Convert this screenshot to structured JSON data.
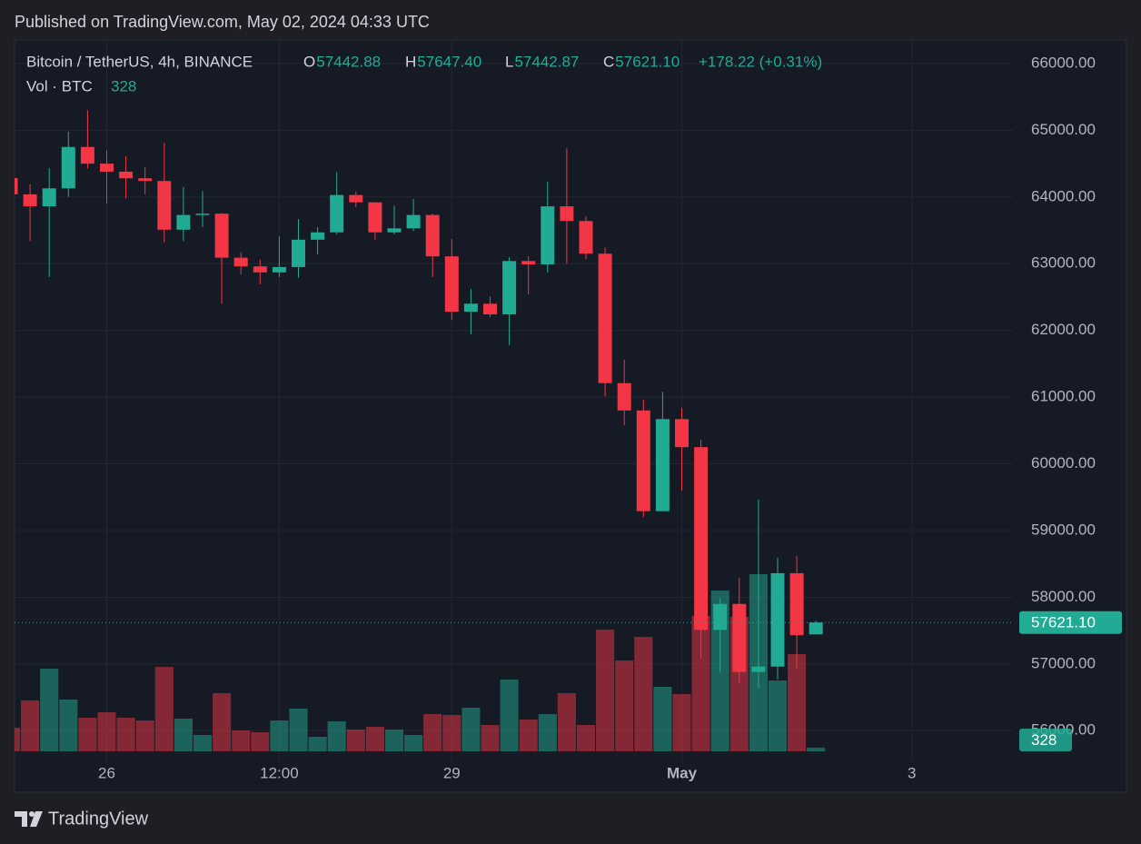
{
  "chart_data": {
    "type": "candlestick",
    "header": "Published on TradingView.com, May 02, 2024 04:33 UTC",
    "symbol": "Bitcoin / TetherUS, 4h, BINANCE",
    "ohlc_legend": [
      {
        "key": "O",
        "value": "57442.88"
      },
      {
        "key": "H",
        "value": "57647.40"
      },
      {
        "key": "L",
        "value": "57442.87"
      },
      {
        "key": "C",
        "value": "57621.10"
      }
    ],
    "change": "+178.22 (+0.31%)",
    "volume_label": "Vol · BTC",
    "price_label": "57621.10",
    "brand": "TradingView",
    "up_color": "#22ab94",
    "down_color": "#f23645",
    "grid": true,
    "categories": [
      null,
      null,
      null,
      null,
      null,
      "26",
      null,
      null,
      null,
      null,
      null,
      null,
      null,
      null,
      "12:00",
      null,
      null,
      null,
      null,
      null,
      null,
      null,
      null,
      "29",
      null,
      null,
      null,
      null,
      null,
      null,
      null,
      null,
      null,
      null,
      null,
      "May",
      null,
      null,
      null,
      null,
      null,
      null,
      null,
      null,
      null,
      null,
      null,
      "3",
      null,
      null,
      null,
      null,
      null
    ],
    "open": [
      64284,
      64040,
      63860,
      64130,
      64750,
      64500,
      64380,
      64280,
      64240,
      63510,
      63730,
      63750,
      63090,
      62960,
      62870,
      62950,
      63360,
      63470,
      64030,
      63920,
      63470,
      63530,
      63730,
      63110,
      62280,
      62400,
      62240,
      63040,
      62990,
      63860,
      63640,
      63150,
      61210,
      60800,
      59290,
      60670,
      60250,
      57510,
      57900,
      56880,
      56960,
      58360,
      57442.88,
      null,
      null,
      null,
      null,
      null,
      null,
      null,
      null,
      null,
      null
    ],
    "high": [
      64400,
      64190,
      64430,
      64980,
      65300,
      64700,
      64610,
      64450,
      64810,
      64150,
      64090,
      63760,
      63170,
      63060,
      63410,
      63670,
      63550,
      64370,
      64080,
      63920,
      63870,
      63970,
      63750,
      63370,
      62620,
      62510,
      63100,
      63110,
      64230,
      64730,
      63710,
      63240,
      61560,
      60960,
      61080,
      60840,
      60360,
      57990,
      58290,
      59460,
      58590,
      58620,
      57647.4,
      null,
      null,
      null,
      null,
      null,
      null,
      null,
      null,
      null,
      null
    ],
    "low": [
      63800,
      63340,
      62800,
      64000,
      64430,
      63900,
      63980,
      64040,
      63320,
      63340,
      63550,
      62400,
      62840,
      62690,
      62800,
      62790,
      63140,
      63440,
      63850,
      63360,
      63440,
      63490,
      62800,
      62160,
      61940,
      62200,
      61780,
      62540,
      62870,
      63000,
      63070,
      61010,
      60580,
      59200,
      59290,
      59600,
      57080,
      56880,
      56710,
      56640,
      56770,
      56930,
      57442.87,
      null,
      null,
      null,
      null,
      null,
      null,
      null,
      null,
      null,
      null
    ],
    "close": [
      64040,
      63860,
      64130,
      64750,
      64500,
      64380,
      64280,
      64240,
      63510,
      63730,
      63750,
      63090,
      62960,
      62870,
      62950,
      63360,
      63470,
      64030,
      63920,
      63470,
      63530,
      63730,
      63110,
      62280,
      62400,
      62240,
      63040,
      62990,
      63860,
      63640,
      63150,
      61210,
      60800,
      59290,
      60670,
      60250,
      57510,
      57900,
      56880,
      56960,
      58360,
      57430,
      57621.1,
      null,
      null,
      null,
      null,
      null,
      null,
      null,
      null,
      null,
      null
    ],
    "volume": [
      2080,
      4480,
      7280,
      4560,
      2960,
      3440,
      2960,
      2720,
      7440,
      2880,
      1440,
      5120,
      1840,
      1680,
      2720,
      3760,
      1280,
      2640,
      1920,
      2160,
      1920,
      1440,
      3280,
      3200,
      3840,
      2320,
      6320,
      2800,
      3280,
      5120,
      2320,
      10720,
      8000,
      10080,
      5680,
      5040,
      11920,
      14160,
      11840,
      15600,
      6240,
      8560,
      328,
      null,
      null,
      null,
      null,
      null,
      null,
      null,
      null,
      null,
      null
    ],
    "ylim": [
      55540,
      66354
    ],
    "yticks": [
      {
        "value": 56000,
        "label": "56000.00"
      },
      {
        "value": 57000,
        "label": "57000.00"
      },
      {
        "value": 58000,
        "label": "58000.00"
      },
      {
        "value": 59000,
        "label": "59000.00"
      },
      {
        "value": 60000,
        "label": "60000.00"
      },
      {
        "value": 61000,
        "label": "61000.00"
      },
      {
        "value": 62000,
        "label": "62000.00"
      },
      {
        "value": 63000,
        "label": "63000.00"
      },
      {
        "value": 64000,
        "label": "64000.00"
      },
      {
        "value": 65000,
        "label": "65000.00"
      },
      {
        "value": 66000,
        "label": "66000.00"
      }
    ],
    "y2lim": [
      0,
      24000
    ]
  }
}
